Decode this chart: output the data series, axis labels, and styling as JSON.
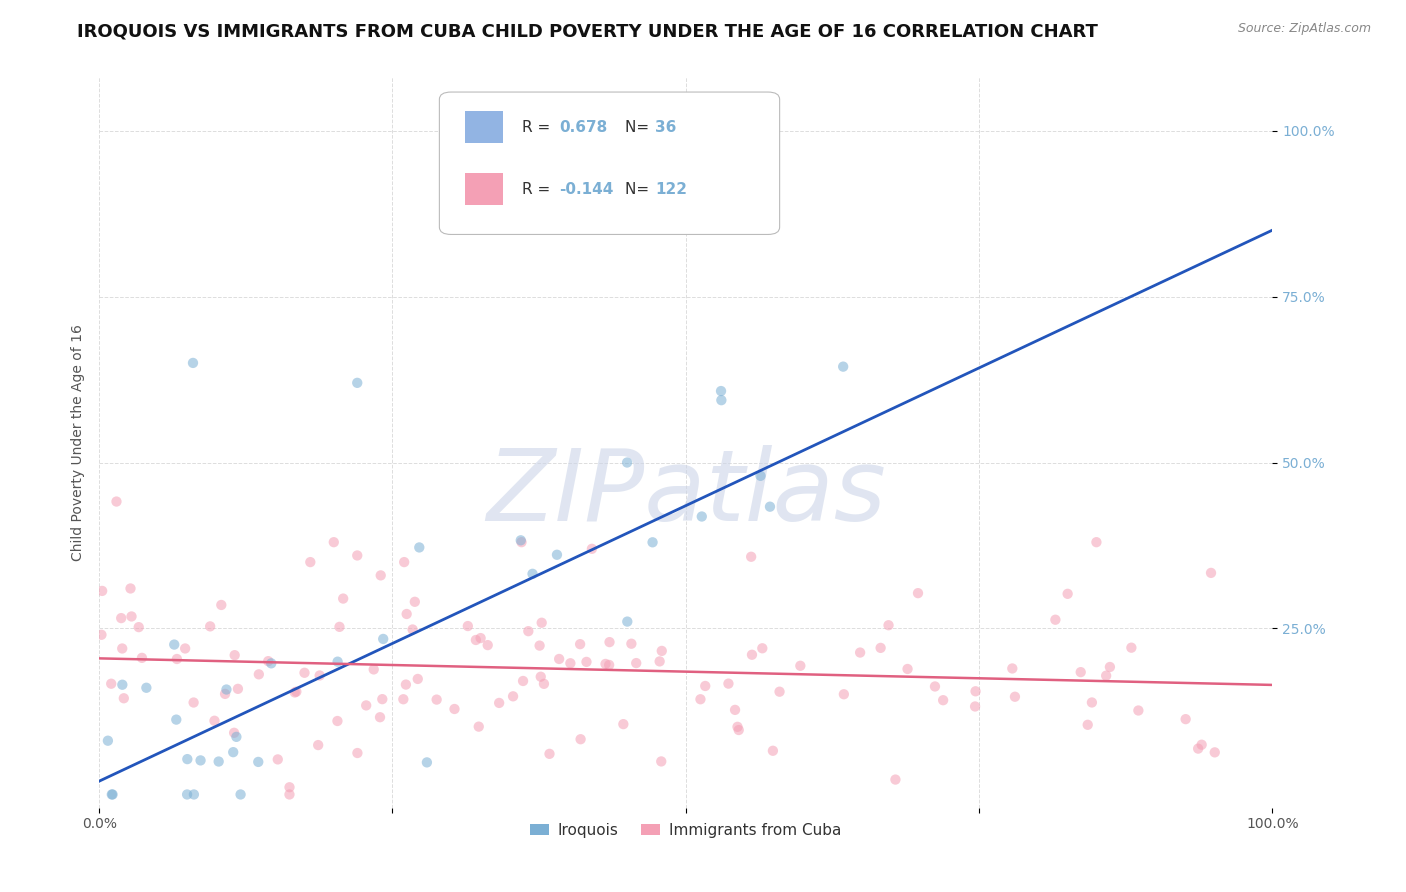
{
  "title": "IROQUOIS VS IMMIGRANTS FROM CUBA CHILD POVERTY UNDER THE AGE OF 16 CORRELATION CHART",
  "source": "Source: ZipAtlas.com",
  "ylabel": "Child Poverty Under the Age of 16",
  "xlabel": "",
  "xlim": [
    0,
    1
  ],
  "ylim": [
    -0.02,
    1.08
  ],
  "xticks": [
    0.0,
    0.25,
    0.5,
    0.75,
    1.0
  ],
  "xtick_labels": [
    "0.0%",
    "",
    "",
    "",
    "100.0%"
  ],
  "yticks": [
    0.25,
    0.5,
    0.75,
    1.0
  ],
  "ytick_labels": [
    "25.0%",
    "50.0%",
    "75.0%",
    "100.0%"
  ],
  "legend_entries": [
    {
      "label": "Iroquois",
      "color": "#92b4e3",
      "R": "0.678",
      "N": "36"
    },
    {
      "label": "Immigrants from Cuba",
      "color": "#f4a0b5",
      "R": "-0.144",
      "N": "122"
    }
  ],
  "blue_line_x": [
    0.0,
    1.0
  ],
  "blue_line_y": [
    0.02,
    0.85
  ],
  "pink_line_x": [
    0.0,
    1.0
  ],
  "pink_line_y": [
    0.205,
    0.165
  ],
  "watermark": "ZIPatlas",
  "watermark_color": "#ccd5e8",
  "background_color": "#ffffff",
  "grid_color": "#dddddd",
  "title_fontsize": 13,
  "axis_label_fontsize": 10,
  "tick_fontsize": 10,
  "scatter_size": 55,
  "scatter_alpha": 0.55,
  "blue_color": "#7bafd4",
  "pink_color": "#f4a0b5",
  "blue_line_color": "#2255bb",
  "pink_line_color": "#e06080"
}
